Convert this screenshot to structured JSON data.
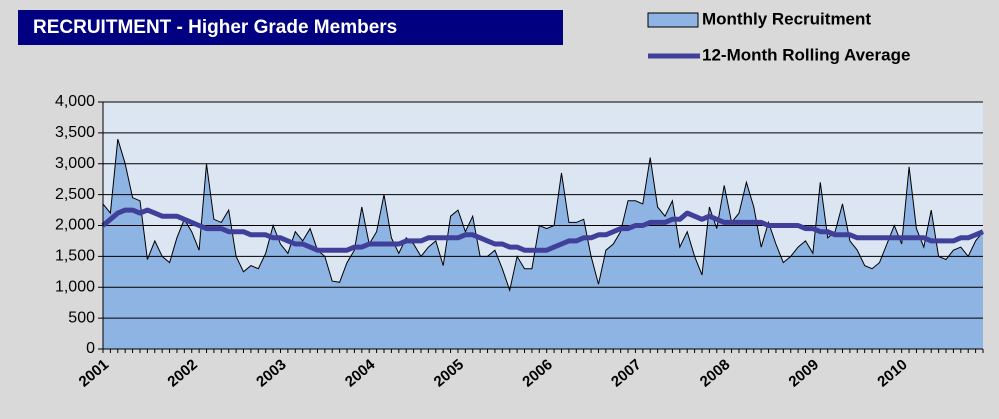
{
  "chart_data": {
    "type": "area",
    "title": "RECRUITMENT - Higher Grade Members",
    "categories": [
      "2001",
      null,
      null,
      null,
      null,
      null,
      null,
      null,
      null,
      null,
      null,
      null,
      "2002",
      null,
      null,
      null,
      null,
      null,
      null,
      null,
      null,
      null,
      null,
      null,
      "2003",
      null,
      null,
      null,
      null,
      null,
      null,
      null,
      null,
      null,
      null,
      null,
      "2004",
      null,
      null,
      null,
      null,
      null,
      null,
      null,
      null,
      null,
      null,
      null,
      "2005",
      null,
      null,
      null,
      null,
      null,
      null,
      null,
      null,
      null,
      null,
      null,
      "2006",
      null,
      null,
      null,
      null,
      null,
      null,
      null,
      null,
      null,
      null,
      null,
      "2007",
      null,
      null,
      null,
      null,
      null,
      null,
      null,
      null,
      null,
      null,
      null,
      "2008",
      null,
      null,
      null,
      null,
      null,
      null,
      null,
      null,
      null,
      null,
      null,
      "2009",
      null,
      null,
      null,
      null,
      null,
      null,
      null,
      null,
      null,
      null,
      null,
      "2010",
      null,
      null,
      null,
      null,
      null,
      null,
      null,
      null,
      null,
      null,
      null
    ],
    "series": [
      {
        "name": "Monthly Recruitment",
        "kind": "area",
        "color": "#8db4e2",
        "values": [
          2350,
          2200,
          3400,
          3000,
          2450,
          2400,
          1450,
          1750,
          1500,
          1400,
          1800,
          2100,
          1900,
          1600,
          3000,
          2100,
          2050,
          2250,
          1500,
          1250,
          1350,
          1300,
          1550,
          2000,
          1700,
          1550,
          1900,
          1750,
          1950,
          1600,
          1500,
          1100,
          1080,
          1400,
          1600,
          2300,
          1700,
          1900,
          2500,
          1800,
          1550,
          1800,
          1700,
          1500,
          1650,
          1750,
          1350,
          2150,
          2250,
          1900,
          2150,
          1500,
          1500,
          1600,
          1300,
          950,
          1500,
          1300,
          1300,
          2000,
          1950,
          2000,
          2850,
          2050,
          2050,
          2100,
          1500,
          1050,
          1600,
          1700,
          1900,
          2400,
          2400,
          2350,
          3100,
          2300,
          2150,
          2400,
          1650,
          1900,
          1500,
          1200,
          2300,
          1950,
          2650,
          2050,
          2200,
          2700,
          2300,
          1650,
          2050,
          1700,
          1400,
          1500,
          1650,
          1750,
          1550,
          2700,
          1800,
          1900,
          2350,
          1750,
          1600,
          1350,
          1300,
          1400,
          1700,
          2000,
          1700,
          2950,
          1950,
          1650,
          2250,
          1500,
          1450,
          1600,
          1650,
          1500,
          1750,
          1900
        ]
      },
      {
        "name": "12-Month Rolling Average",
        "kind": "line",
        "color": "#40409a",
        "values": [
          2000,
          2100,
          2200,
          2250,
          2250,
          2200,
          2250,
          2200,
          2150,
          2150,
          2150,
          2100,
          2050,
          2000,
          1950,
          1950,
          1950,
          1900,
          1900,
          1900,
          1850,
          1850,
          1850,
          1800,
          1800,
          1750,
          1700,
          1700,
          1650,
          1600,
          1600,
          1600,
          1600,
          1600,
          1650,
          1650,
          1700,
          1700,
          1700,
          1700,
          1700,
          1750,
          1750,
          1750,
          1800,
          1800,
          1800,
          1800,
          1800,
          1850,
          1850,
          1800,
          1750,
          1700,
          1700,
          1650,
          1650,
          1600,
          1600,
          1600,
          1600,
          1650,
          1700,
          1750,
          1750,
          1800,
          1800,
          1850,
          1850,
          1900,
          1950,
          1950,
          2000,
          2000,
          2050,
          2050,
          2050,
          2100,
          2100,
          2200,
          2150,
          2100,
          2150,
          2100,
          2050,
          2050,
          2050,
          2050,
          2050,
          2050,
          2000,
          2000,
          2000,
          2000,
          2000,
          1950,
          1950,
          1900,
          1900,
          1850,
          1850,
          1850,
          1800,
          1800,
          1800,
          1800,
          1800,
          1800,
          1800,
          1800,
          1800,
          1800,
          1750,
          1750,
          1750,
          1750,
          1800,
          1800,
          1850,
          1900
        ]
      }
    ],
    "ylim": [
      0,
      4000
    ],
    "yticks": [
      0,
      {
        "value": 500,
        "label": "500"
      },
      {
        "value": 1000,
        "label": "1,000"
      },
      {
        "value": 1500,
        "label": "1,500"
      },
      {
        "value": 2000,
        "label": "2,000"
      },
      {
        "value": 2500,
        "label": "2,500"
      },
      {
        "value": 3000,
        "label": "3,000"
      },
      {
        "value": 3500,
        "label": "3,500"
      },
      {
        "value": 4000,
        "label": "4,000"
      }
    ],
    "grid": true
  }
}
